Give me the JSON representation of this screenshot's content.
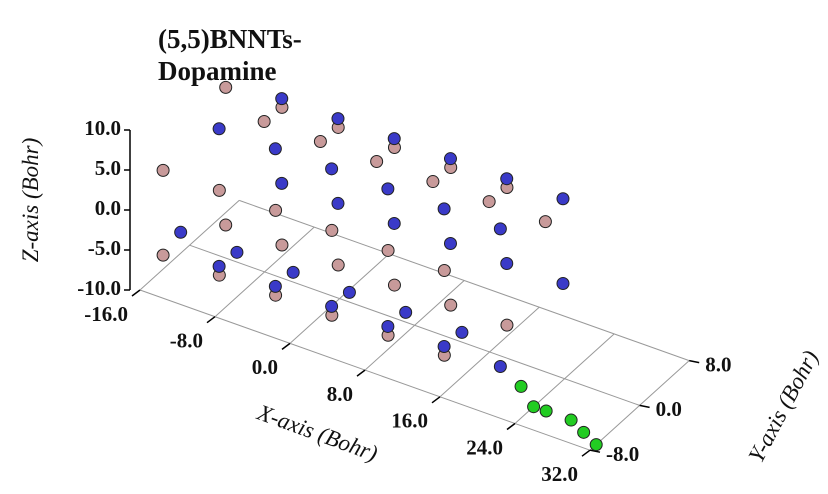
{
  "chart_data": {
    "type": "scatter3d",
    "title_lines": [
      "(5,5)BNNTs-",
      "Dopamine"
    ],
    "xlabel": "X-axis (Bohr)",
    "ylabel": "Y-axis (Bohr)",
    "zlabel": "Z-axis (Bohr)",
    "xlim": [
      -16,
      32
    ],
    "ylim": [
      -8,
      8
    ],
    "zlim": [
      -10,
      10
    ],
    "xticks": [
      {
        "value": -16,
        "label": "-16.0"
      },
      {
        "value": -8,
        "label": "-8.0"
      },
      {
        "value": 0,
        "label": "0.0"
      },
      {
        "value": 8,
        "label": "8.0"
      },
      {
        "value": 16,
        "label": "16.0"
      },
      {
        "value": 24,
        "label": "24.0"
      },
      {
        "value": 32,
        "label": "32.0"
      }
    ],
    "yticks": [
      {
        "value": -8,
        "label": "-8.0"
      },
      {
        "value": 0,
        "label": "0.0"
      },
      {
        "value": 8,
        "label": "8.0"
      }
    ],
    "zticks": [
      {
        "value": -10,
        "label": "-10.0"
      },
      {
        "value": -5,
        "label": "-5.0"
      },
      {
        "value": 0,
        "label": "0.0"
      },
      {
        "value": 5,
        "label": "5.0"
      },
      {
        "value": 10,
        "label": "10.0"
      }
    ],
    "grid": true,
    "series": [
      {
        "color": "#c89a9a",
        "x": [
          -14,
          -14,
          -14,
          -14,
          -14,
          -8,
          -8,
          -8,
          -8,
          -8,
          -2,
          -2,
          -2,
          -2,
          -2,
          4,
          4,
          4,
          4,
          4,
          10,
          10,
          10,
          10,
          10,
          16,
          16,
          16,
          16,
          16
        ],
        "y": [
          9,
          2.8,
          -7.3,
          -7.3,
          2.8,
          9,
          2.8,
          -7.3,
          -7.3,
          2.8,
          9,
          2.8,
          -7.3,
          -7.3,
          2.8,
          9,
          2.8,
          -7.3,
          -7.3,
          2.8,
          9,
          2.8,
          -7.3,
          -7.3,
          2.8,
          9,
          2.8,
          -7.3,
          -7.3,
          2.8
        ],
        "z": [
          0,
          8.6,
          5.3,
          -5.3,
          -8.6,
          0,
          8.6,
          5.3,
          -5.3,
          -8.6,
          0,
          8.6,
          5.3,
          -5.3,
          -8.6,
          0,
          8.6,
          5.3,
          -5.3,
          -8.6,
          0,
          8.6,
          5.3,
          -5.3,
          -8.6,
          0,
          8.6,
          5.3,
          -5.3,
          -8.6
        ]
      },
      {
        "color": "#3a3ac8",
        "x": [
          -11,
          -11,
          -11,
          -11,
          -11,
          -5,
          -5,
          -5,
          -5,
          -5,
          1,
          1,
          1,
          1,
          1,
          7,
          7,
          7,
          7,
          7,
          13,
          13,
          13,
          13,
          13,
          19,
          19,
          19,
          19,
          19
        ],
        "y": [
          7.3,
          -2.8,
          -9,
          -2.8,
          7.3,
          7.3,
          -2.8,
          -9,
          -2.8,
          7.3,
          7.3,
          -2.8,
          -9,
          -2.8,
          7.3,
          7.3,
          -2.8,
          -9,
          -2.8,
          7.3,
          7.3,
          -2.8,
          -9,
          -2.8,
          7.3,
          7.3,
          -2.8,
          -9,
          -2.8,
          7.3
        ],
        "z": [
          5.3,
          8.6,
          0,
          -8.6,
          -5.3,
          5.3,
          8.6,
          0,
          -8.6,
          -5.3,
          5.3,
          8.6,
          0,
          -8.6,
          -5.3,
          5.3,
          8.6,
          0,
          -8.6,
          -5.3,
          5.3,
          8.6,
          0,
          -8.6,
          -5.3,
          5.3,
          8.6,
          0,
          -8.6,
          -5.3
        ]
      },
      {
        "color": "#22cc22",
        "x": [
          22,
          24,
          26,
          28,
          30,
          32
        ],
        "y": [
          -4,
          -5,
          -6,
          -5,
          -6,
          -7
        ],
        "z": [
          -9,
          -10,
          -9,
          -10,
          -10,
          -10
        ]
      }
    ]
  }
}
